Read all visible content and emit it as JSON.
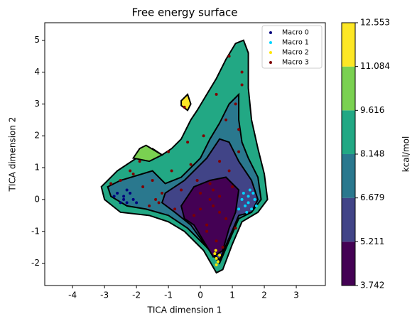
{
  "chart_data": {
    "type": "contour_scatter",
    "title": "Free energy surface",
    "xlabel": "TICA dimension 1",
    "ylabel": "TICA dimension 2",
    "xlim": [
      -4.87,
      3.91
    ],
    "ylim": [
      -2.7,
      5.55
    ],
    "xticks": [
      -4,
      -3,
      -2,
      -1,
      0,
      1,
      2,
      3
    ],
    "yticks": [
      -2,
      -1,
      0,
      1,
      2,
      3,
      4,
      5
    ],
    "colorbar": {
      "label": "kcal/mol",
      "levels": [
        3.742,
        5.211,
        6.679,
        8.148,
        9.616,
        11.084,
        12.553
      ],
      "colors": [
        "#440154",
        "#414487",
        "#2a788e",
        "#22a884",
        "#7ad151",
        "#fde725"
      ]
    },
    "regions": [
      {
        "level": 8.148,
        "x": [
          -3.1,
          -2.6,
          -2.0,
          -1.5,
          -1.2,
          -0.9,
          -0.6,
          -0.3,
          -0.1,
          0.2,
          0.5,
          0.8,
          1.1,
          1.35,
          1.5,
          1.5,
          1.6,
          1.8,
          2.0,
          2.1,
          1.8,
          1.3,
          1.0,
          0.7,
          0.5,
          0.1,
          -0.5,
          -1.0,
          -1.6,
          -2.5,
          -3.0
        ],
        "y": [
          0.4,
          0.9,
          1.3,
          1.6,
          1.4,
          1.6,
          1.9,
          2.5,
          2.8,
          3.3,
          3.8,
          4.4,
          4.9,
          5.0,
          4.6,
          3.5,
          2.5,
          1.6,
          0.8,
          0.0,
          -0.4,
          -0.7,
          -1.4,
          -2.2,
          -2.3,
          -1.6,
          -1.0,
          -0.7,
          -0.5,
          -0.4,
          0.0
        ]
      },
      {
        "level": 9.616,
        "x": [
          -2.1,
          -1.9,
          -1.7,
          -1.2,
          -1.6
        ],
        "y": [
          1.3,
          1.6,
          1.7,
          1.4,
          1.2
        ]
      },
      {
        "level": 11.084,
        "x": [
          -0.6,
          -0.4,
          -0.3,
          -0.4,
          -0.6
        ],
        "y": [
          3.1,
          3.3,
          3.0,
          2.8,
          2.95
        ]
      },
      {
        "level": 6.679,
        "x": [
          -2.9,
          -2.5,
          -1.5,
          -1.1,
          -0.6,
          0.0,
          0.3,
          0.6,
          0.9,
          1.2,
          1.2,
          1.3,
          1.5,
          1.8,
          1.9,
          1.6,
          1.2,
          0.9,
          0.6,
          0.2,
          -0.4,
          -1.0,
          -1.7,
          -2.3,
          -2.8
        ],
        "y": [
          0.4,
          0.6,
          0.9,
          0.5,
          0.7,
          1.3,
          1.9,
          2.4,
          3.0,
          3.3,
          2.5,
          1.8,
          1.3,
          0.7,
          0.0,
          -0.4,
          -0.6,
          -1.3,
          -2.0,
          -1.5,
          -0.9,
          -0.5,
          -0.3,
          -0.2,
          0.1
        ]
      },
      {
        "level": 5.211,
        "x": [
          -1.1,
          -0.5,
          0.2,
          0.6,
          0.9,
          1.2,
          1.6,
          1.8,
          1.6,
          1.2,
          0.9,
          0.6,
          0.2,
          -0.3,
          -0.8,
          -1.2
        ],
        "y": [
          0.2,
          0.6,
          1.3,
          1.9,
          1.8,
          1.2,
          0.6,
          0.0,
          -0.4,
          -0.5,
          -1.2,
          -1.9,
          -1.5,
          -0.8,
          -0.4,
          -0.1
        ]
      },
      {
        "level": 3.742,
        "x": [
          -0.6,
          -0.2,
          0.3,
          0.8,
          1.2,
          1.1,
          0.9,
          0.7,
          0.4,
          0.1,
          -0.2,
          -0.5
        ],
        "y": [
          -0.2,
          0.4,
          0.6,
          0.7,
          0.3,
          -0.4,
          -0.9,
          -1.6,
          -1.8,
          -1.3,
          -0.8,
          -0.6
        ]
      }
    ],
    "series": [
      {
        "name": "Macro 0",
        "color": "#00007f",
        "x": [
          -2.6,
          -2.4,
          -2.3,
          -2.2,
          -2.5,
          -2.1,
          -2.7,
          -2.3,
          -2.0,
          -2.4
        ],
        "y": [
          0.2,
          0.1,
          -0.1,
          0.2,
          -0.1,
          0.0,
          0.1,
          0.3,
          -0.1,
          0.0
        ]
      },
      {
        "name": "Macro 1",
        "color": "#00d4ff",
        "x": [
          1.3,
          1.4,
          1.5,
          1.6,
          1.7,
          1.45,
          1.55,
          1.35,
          1.65,
          1.5,
          1.2,
          1.75
        ],
        "y": [
          0.0,
          -0.2,
          0.1,
          -0.3,
          0.0,
          -0.4,
          0.3,
          0.2,
          0.2,
          -0.1,
          -0.3,
          -0.2
        ]
      },
      {
        "name": "Macro 2",
        "color": "#ffe500",
        "x": [
          0.45,
          0.5,
          0.55,
          0.5,
          0.6,
          0.48
        ],
        "y": [
          -1.7,
          -1.85,
          -1.95,
          -2.05,
          -1.75,
          -1.6
        ]
      },
      {
        "name": "Macro 3",
        "color": "#7f0000",
        "x": [
          -2.8,
          -2.5,
          -2.1,
          -1.8,
          -1.5,
          -1.2,
          -0.9,
          -0.6,
          -0.3,
          0.0,
          0.3,
          0.6,
          0.9,
          1.2,
          -1.9,
          -1.4,
          -0.8,
          -0.2,
          0.4,
          0.8,
          1.1,
          0.2,
          0.5,
          0.7,
          1.0,
          1.2,
          1.1,
          1.3,
          -0.4,
          -1.0,
          -1.6,
          -2.2,
          0.0,
          0.3,
          0.6,
          0.2,
          -0.1,
          0.4,
          0.8,
          0.5,
          0.1,
          -0.5,
          -1.3,
          0.9,
          0.6,
          1.3
        ],
        "y": [
          0.5,
          0.6,
          0.8,
          0.4,
          0.6,
          0.2,
          0.9,
          0.3,
          1.1,
          0.2,
          0.5,
          0.1,
          0.9,
          1.5,
          1.2,
          0.0,
          -0.3,
          -0.5,
          -0.2,
          -0.6,
          -0.9,
          -1.0,
          -1.3,
          -1.5,
          0.4,
          2.2,
          3.0,
          4.0,
          1.8,
          1.5,
          -0.2,
          0.9,
          -0.3,
          0.0,
          -0.4,
          -0.8,
          0.6,
          0.3,
          2.5,
          3.3,
          2.0,
          2.9,
          -0.1,
          4.5,
          1.2,
          3.6
        ]
      }
    ],
    "legend": "upper right"
  }
}
